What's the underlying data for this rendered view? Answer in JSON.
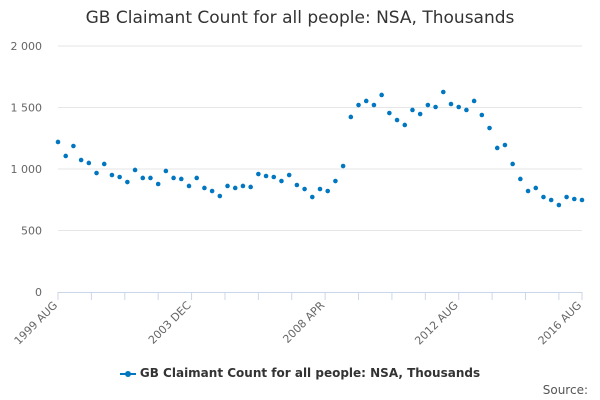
{
  "chart_data": {
    "type": "scatter",
    "title": "GB Claimant Count for all people: NSA, Thousands",
    "xlabel": "",
    "ylabel": "",
    "ylim": [
      0,
      2000
    ],
    "yticks": [
      0,
      500,
      1000,
      1500,
      2000
    ],
    "ytick_labels": [
      "0",
      "500",
      "1 000",
      "1 500",
      "2 000"
    ],
    "x_unit": "months since 1999 AUG, sampled every 3 months",
    "xlim": [
      0,
      204
    ],
    "xtick_labels": [
      {
        "label": "1999 AUG",
        "x": 0
      },
      {
        "label": "2003 DEC",
        "x": 52
      },
      {
        "label": "2008 APR",
        "x": 104
      },
      {
        "label": "2012 AUG",
        "x": 156
      },
      {
        "label": "2016 AUG",
        "x": 204
      }
    ],
    "grid": true,
    "legend_position": "bottom",
    "series": [
      {
        "name": "GB Claimant Count for all people: NSA, Thousands",
        "color": "#0077c0",
        "values": [
          1220,
          1106,
          1187,
          1073,
          1049,
          967,
          1041,
          951,
          935,
          894,
          992,
          927,
          927,
          878,
          984,
          927,
          919,
          862,
          927,
          846,
          821,
          780,
          862,
          846,
          862,
          854,
          959,
          943,
          935,
          902,
          951,
          870,
          837,
          772,
          837,
          821,
          902,
          1024,
          1423,
          1520,
          1553,
          1520,
          1602,
          1455,
          1398,
          1358,
          1480,
          1447,
          1520,
          1504,
          1626,
          1528,
          1504,
          1480,
          1553,
          1439,
          1333,
          1171,
          1195,
          1041,
          919,
          821,
          846,
          772,
          748,
          707,
          772,
          756,
          748
        ]
      }
    ]
  },
  "legend_label": "GB Claimant Count for all people: NSA, Thousands",
  "source_label": "Source:"
}
